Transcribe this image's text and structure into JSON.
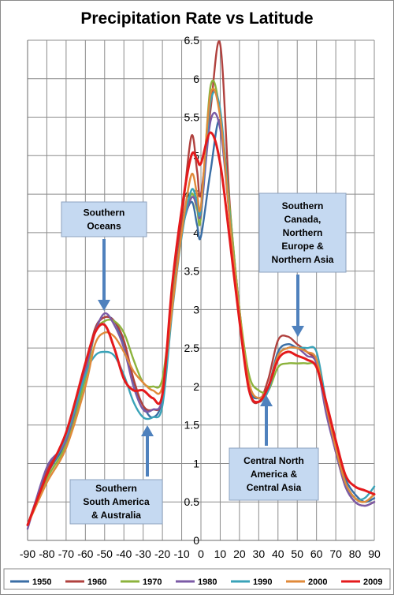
{
  "chart_data": {
    "type": "line",
    "title": "Precipitation Rate vs Latitude",
    "xlabel": "",
    "ylabel": "",
    "xlim": [
      -90,
      90
    ],
    "ylim": [
      0,
      6.5
    ],
    "grid": true,
    "legend_position": "bottom",
    "x_ticks": [
      -90,
      -80,
      -70,
      -60,
      -50,
      -40,
      -30,
      -20,
      -10,
      0,
      10,
      20,
      30,
      40,
      50,
      60,
      70,
      80,
      90
    ],
    "y_ticks": [
      0,
      0.5,
      1,
      1.5,
      2,
      2.5,
      3,
      3.5,
      4,
      4.5,
      5,
      5.5,
      6,
      6.5
    ],
    "series": [
      {
        "name": "1950",
        "color": "#3a6ea5",
        "x": [
          -90,
          -80,
          -70,
          -60,
          -55,
          -50,
          -45,
          -40,
          -35,
          -30,
          -25,
          -20,
          -15,
          -10,
          -5,
          -2,
          0,
          5,
          10,
          15,
          20,
          25,
          30,
          35,
          40,
          45,
          50,
          55,
          60,
          65,
          70,
          75,
          80,
          85,
          90
        ],
        "y": [
          0.2,
          0.85,
          1.3,
          2.2,
          2.75,
          2.9,
          2.85,
          2.55,
          2.05,
          1.75,
          1.6,
          1.85,
          3.0,
          4.0,
          4.4,
          4.1,
          3.95,
          4.8,
          5.45,
          4.2,
          3.0,
          2.0,
          1.85,
          2.0,
          2.45,
          2.55,
          2.5,
          2.45,
          2.3,
          1.7,
          1.2,
          0.8,
          0.6,
          0.5,
          0.55
        ]
      },
      {
        "name": "1960",
        "color": "#b0413e",
        "x": [
          -90,
          -80,
          -70,
          -60,
          -55,
          -50,
          -45,
          -40,
          -35,
          -30,
          -25,
          -20,
          -15,
          -10,
          -5,
          -2,
          0,
          5,
          10,
          15,
          20,
          25,
          30,
          35,
          40,
          45,
          50,
          55,
          60,
          65,
          70,
          75,
          80,
          85,
          90
        ],
        "y": [
          0.2,
          0.9,
          1.35,
          2.25,
          2.75,
          2.9,
          2.85,
          2.6,
          2.1,
          1.75,
          1.7,
          1.85,
          3.1,
          4.15,
          5.25,
          4.8,
          4.5,
          5.6,
          6.45,
          4.35,
          3.0,
          1.95,
          1.8,
          2.1,
          2.6,
          2.65,
          2.55,
          2.45,
          2.3,
          1.7,
          1.15,
          0.7,
          0.5,
          0.45,
          0.5
        ]
      },
      {
        "name": "1970",
        "color": "#8cb33c",
        "x": [
          -90,
          -80,
          -70,
          -60,
          -55,
          -50,
          -45,
          -40,
          -35,
          -30,
          -25,
          -20,
          -15,
          -10,
          -5,
          -2,
          0,
          5,
          10,
          15,
          20,
          25,
          30,
          35,
          40,
          45,
          50,
          55,
          60,
          65,
          70,
          75,
          80,
          85,
          90
        ],
        "y": [
          0.2,
          0.8,
          1.25,
          2.1,
          2.7,
          2.85,
          2.85,
          2.7,
          2.35,
          2.05,
          2.0,
          2.1,
          3.1,
          4.0,
          4.5,
          4.3,
          4.2,
          5.9,
          5.55,
          4.3,
          3.0,
          2.15,
          1.95,
          1.95,
          2.25,
          2.3,
          2.3,
          2.3,
          2.25,
          1.75,
          1.25,
          0.75,
          0.55,
          0.5,
          0.6
        ]
      },
      {
        "name": "1980",
        "color": "#7b5aa6",
        "x": [
          -90,
          -80,
          -70,
          -60,
          -55,
          -50,
          -45,
          -40,
          -35,
          -30,
          -25,
          -20,
          -15,
          -10,
          -5,
          -2,
          0,
          5,
          10,
          15,
          20,
          25,
          30,
          35,
          40,
          45,
          50,
          55,
          60,
          65,
          70,
          75,
          80,
          85,
          90
        ],
        "y": [
          0.15,
          0.95,
          1.3,
          2.2,
          2.7,
          2.95,
          2.8,
          2.5,
          2.0,
          1.7,
          1.7,
          1.85,
          3.0,
          4.0,
          4.45,
          4.35,
          4.25,
          5.45,
          5.35,
          4.15,
          2.9,
          1.95,
          1.8,
          1.95,
          2.4,
          2.5,
          2.5,
          2.4,
          2.3,
          1.65,
          1.15,
          0.7,
          0.5,
          0.45,
          0.5
        ]
      },
      {
        "name": "1990",
        "color": "#3aa3b8",
        "x": [
          -90,
          -80,
          -70,
          -60,
          -55,
          -50,
          -45,
          -40,
          -35,
          -30,
          -25,
          -20,
          -15,
          -10,
          -5,
          -2,
          0,
          5,
          10,
          15,
          20,
          25,
          30,
          35,
          40,
          45,
          50,
          55,
          60,
          65,
          70,
          75,
          80,
          85,
          90
        ],
        "y": [
          0.2,
          0.85,
          1.35,
          2.15,
          2.4,
          2.45,
          2.4,
          2.15,
          1.8,
          1.6,
          1.6,
          1.75,
          2.95,
          3.95,
          4.55,
          4.4,
          4.3,
          5.7,
          5.6,
          4.2,
          2.9,
          1.95,
          1.8,
          1.95,
          2.4,
          2.5,
          2.5,
          2.5,
          2.45,
          1.8,
          1.2,
          0.75,
          0.55,
          0.55,
          0.7
        ]
      },
      {
        "name": "2000",
        "color": "#e08a3a",
        "x": [
          -90,
          -80,
          -70,
          -60,
          -55,
          -50,
          -45,
          -40,
          -35,
          -30,
          -25,
          -20,
          -15,
          -10,
          -5,
          -2,
          0,
          5,
          10,
          15,
          20,
          25,
          30,
          35,
          40,
          45,
          50,
          55,
          60,
          65,
          70,
          75,
          80,
          85,
          90
        ],
        "y": [
          0.2,
          0.75,
          1.2,
          2.0,
          2.55,
          2.7,
          2.65,
          2.45,
          2.2,
          2.05,
          1.95,
          2.0,
          3.0,
          4.0,
          4.75,
          4.5,
          4.35,
          5.8,
          5.5,
          4.15,
          2.95,
          2.05,
          1.85,
          2.0,
          2.4,
          2.5,
          2.5,
          2.45,
          2.35,
          1.75,
          1.2,
          0.75,
          0.55,
          0.5,
          0.6
        ]
      },
      {
        "name": "2009",
        "color": "#e41a1c",
        "x": [
          -90,
          -80,
          -70,
          -60,
          -55,
          -50,
          -45,
          -40,
          -35,
          -30,
          -25,
          -20,
          -15,
          -10,
          -5,
          -2,
          0,
          5,
          10,
          15,
          20,
          25,
          30,
          35,
          40,
          45,
          50,
          55,
          60,
          65,
          70,
          75,
          80,
          85,
          90
        ],
        "y": [
          0.2,
          0.85,
          1.4,
          2.3,
          2.7,
          2.8,
          2.5,
          2.1,
          1.95,
          1.95,
          1.85,
          1.9,
          3.3,
          4.3,
          5.0,
          4.95,
          4.9,
          5.3,
          4.9,
          3.9,
          2.85,
          1.95,
          1.8,
          2.0,
          2.35,
          2.45,
          2.4,
          2.35,
          2.25,
          1.8,
          1.3,
          0.85,
          0.7,
          0.65,
          0.6
        ]
      }
    ],
    "annotations": [
      {
        "id": "southern-oceans",
        "lines": [
          "Southern",
          "Oceans"
        ]
      },
      {
        "id": "southern-south-america",
        "lines": [
          "Southern",
          "South America",
          "& Australia"
        ]
      },
      {
        "id": "southern-canada",
        "lines": [
          "Southern",
          "Canada,",
          "Northern",
          "Europe &",
          "Northern Asia"
        ]
      },
      {
        "id": "central-north-america",
        "lines": [
          "Central North",
          "America &",
          "Central Asia"
        ]
      }
    ]
  }
}
